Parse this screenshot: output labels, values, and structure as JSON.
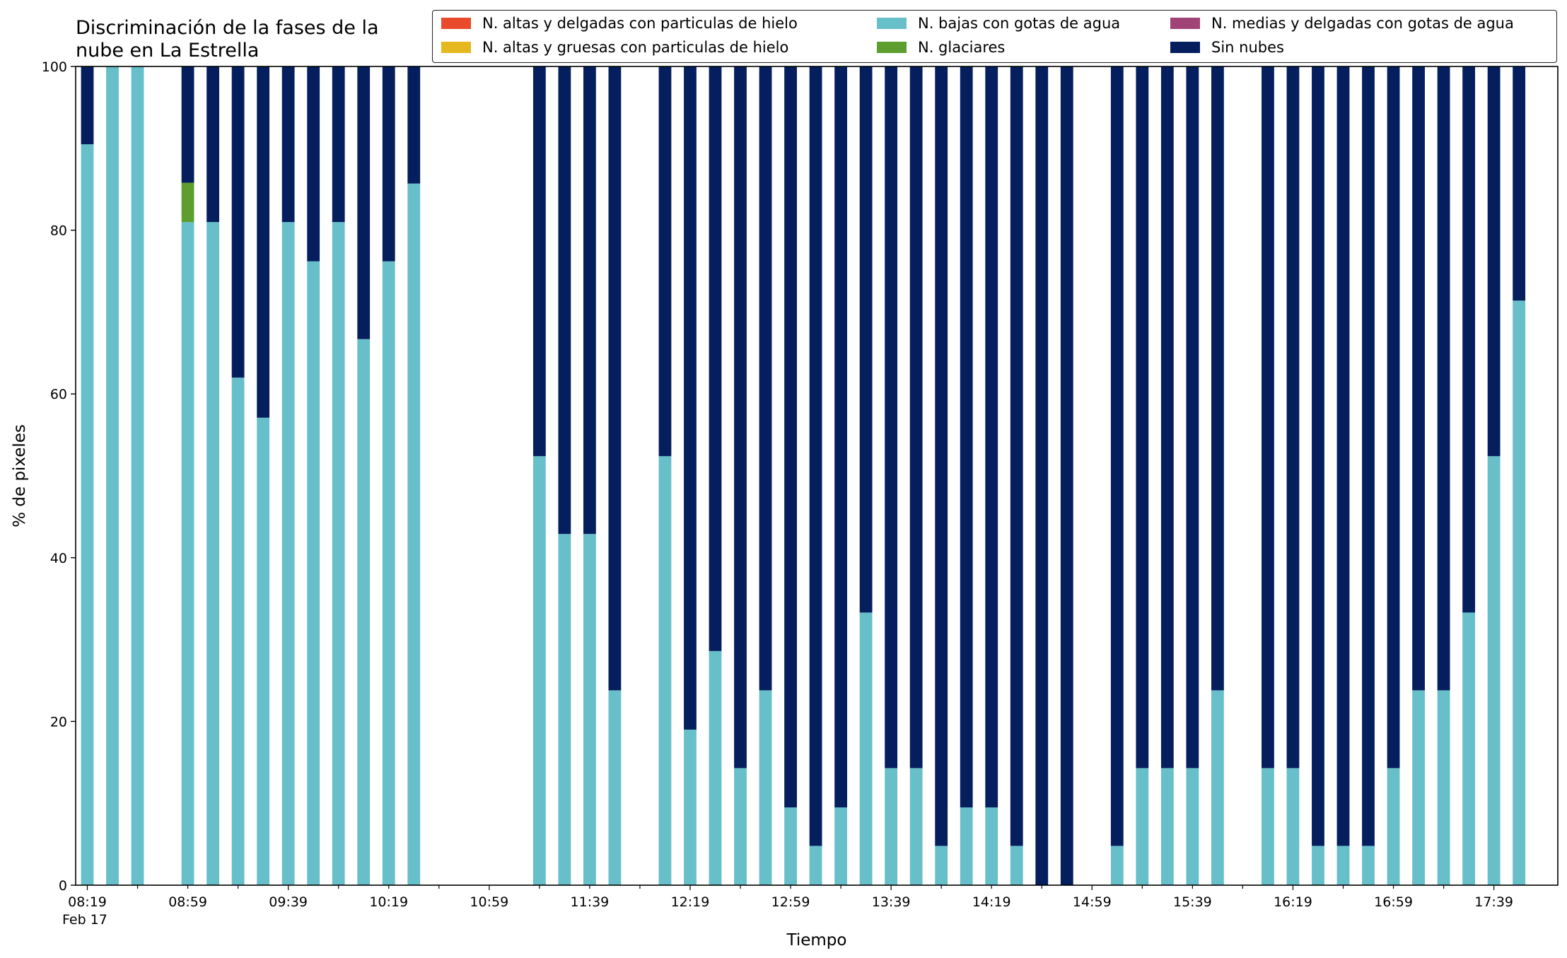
{
  "chart_data": {
    "type": "bar",
    "stacked": true,
    "title_lines": [
      "Discriminación de la fases de la",
      "nube en La Estrella"
    ],
    "xlabel": "Tiempo",
    "ylabel": "% de pixeles",
    "ylim": [
      0,
      100
    ],
    "yticks": [
      0,
      20,
      40,
      60,
      80,
      100
    ],
    "legend_position": "top-right",
    "x_start": "08:19",
    "x_interval_minutes": 10,
    "bar_count": 58,
    "x_tick_labels": [
      "08:19",
      "08:59",
      "09:39",
      "10:19",
      "10:59",
      "11:39",
      "12:19",
      "12:59",
      "13:39",
      "14:19",
      "14:59",
      "15:39",
      "16:19",
      "16:59",
      "17:39"
    ],
    "x_date_label": "Feb 17",
    "series": [
      {
        "name": "N. altas y delgadas con particulas de hielo",
        "color": "#e84a2b",
        "values": [
          0,
          0,
          0,
          0,
          0,
          0,
          0,
          0,
          0,
          0,
          0,
          0,
          0,
          0,
          0,
          0,
          0,
          0,
          0,
          0,
          0,
          0,
          0,
          0,
          0,
          0,
          0,
          0,
          0,
          0,
          0,
          0,
          0,
          0,
          0,
          0,
          0,
          0,
          0,
          0,
          0,
          0,
          0,
          0,
          0,
          0,
          0,
          0,
          0,
          0,
          0,
          0,
          0,
          0,
          0,
          0,
          0,
          0
        ]
      },
      {
        "name": "N. altas y gruesas con particulas de hielo",
        "color": "#e6b81f",
        "values": [
          0,
          0,
          0,
          0,
          0,
          0,
          0,
          0,
          0,
          0,
          0,
          0,
          0,
          0,
          0,
          0,
          0,
          0,
          0,
          0,
          0,
          0,
          0,
          0,
          0,
          0,
          0,
          0,
          0,
          0,
          0,
          0,
          0,
          0,
          0,
          0,
          0,
          0,
          0,
          0,
          0,
          0,
          0,
          0,
          0,
          0,
          0,
          0,
          0,
          0,
          0,
          0,
          0,
          0,
          0,
          0,
          0,
          0
        ]
      },
      {
        "name": "N. bajas con gotas de agua",
        "color": "#67bfca",
        "values": [
          90.5,
          100,
          100,
          0,
          81,
          81,
          62,
          57.1,
          81,
          76.2,
          81,
          66.7,
          76.2,
          85.7,
          0,
          0,
          0,
          0,
          52.4,
          42.9,
          42.9,
          23.8,
          0,
          52.4,
          19,
          28.6,
          14.3,
          23.8,
          9.5,
          4.8,
          9.5,
          33.3,
          14.3,
          14.3,
          4.8,
          9.5,
          9.5,
          4.8,
          0,
          0,
          0,
          4.8,
          14.3,
          14.3,
          14.3,
          23.8,
          0,
          14.3,
          14.3,
          4.8,
          4.8,
          4.8,
          14.3,
          23.8,
          23.8,
          33.3,
          52.4,
          71.4
        ]
      },
      {
        "name": "N. glaciares",
        "color": "#5e9e2e",
        "values": [
          0,
          0,
          0,
          0,
          4.8,
          0,
          0,
          0,
          0,
          0,
          0,
          0,
          0,
          0,
          0,
          0,
          0,
          0,
          0,
          0,
          0,
          0,
          0,
          0,
          0,
          0,
          0,
          0,
          0,
          0,
          0,
          0,
          0,
          0,
          0,
          0,
          0,
          0,
          0,
          0,
          0,
          0,
          0,
          0,
          0,
          0,
          0,
          0,
          0,
          0,
          0,
          0,
          0,
          0,
          0,
          0,
          0,
          0
        ]
      },
      {
        "name": "N. medias y delgadas con gotas de agua",
        "color": "#a04478",
        "values": [
          0,
          0,
          0,
          0,
          0,
          0,
          0,
          0,
          0,
          0,
          0,
          0,
          0,
          0,
          0,
          0,
          0,
          0,
          0,
          0,
          0,
          0,
          0,
          0,
          0,
          0,
          0,
          0,
          0,
          0,
          0,
          0,
          0,
          0,
          0,
          0,
          0,
          0,
          0,
          0,
          0,
          0,
          0,
          0,
          0,
          0,
          0,
          0,
          0,
          0,
          0,
          0,
          0,
          0,
          0,
          0,
          0,
          0
        ]
      },
      {
        "name": "Sin nubes",
        "color": "#051e5e",
        "values": [
          9.5,
          0,
          0,
          0,
          14.2,
          19,
          38,
          42.9,
          19,
          23.8,
          19,
          33.3,
          23.8,
          14.3,
          0,
          0,
          0,
          0,
          47.6,
          57.1,
          57.1,
          76.2,
          0,
          47.6,
          81,
          71.4,
          85.7,
          76.2,
          90.5,
          95.2,
          90.5,
          66.7,
          85.7,
          85.7,
          95.2,
          90.5,
          90.5,
          95.2,
          100,
          100,
          0,
          95.2,
          85.7,
          85.7,
          85.7,
          76.2,
          0,
          85.7,
          85.7,
          95.2,
          95.2,
          95.2,
          85.7,
          76.2,
          76.2,
          66.7,
          47.6,
          28.6
        ]
      }
    ],
    "legend_order": [
      "N. altas y delgadas con particulas de hielo",
      "N. altas y gruesas con particulas de hielo",
      "N. bajas con gotas de agua",
      "N. glaciares",
      "N. medias y delgadas con gotas de agua",
      "Sin nubes"
    ]
  }
}
